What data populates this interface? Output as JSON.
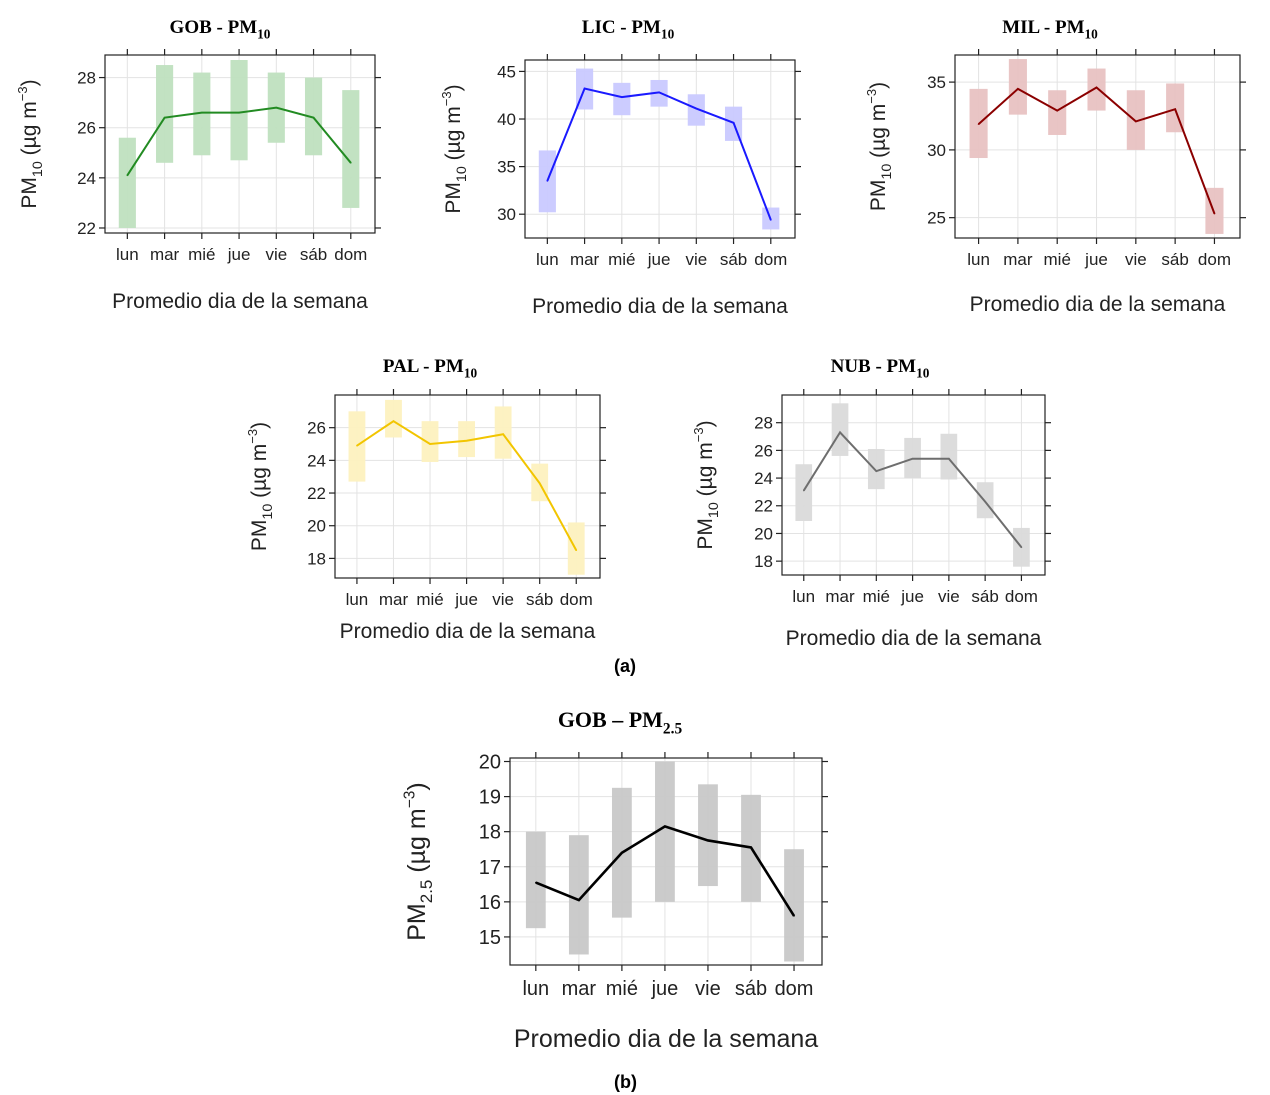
{
  "captions": {
    "a": "(a)",
    "b": "(b)"
  },
  "chart_data": [
    {
      "id": "gob-pm10",
      "type": "line",
      "title": "GOB - PM",
      "title_sub": "10",
      "ylabel": "PM",
      "ylabel_sub": "10",
      "ylabel_unit": "(µg m",
      "ylabel_sup": "−3",
      "xlabel": "Promedio dia de la semana",
      "categories": [
        "lun",
        "mar",
        "mié",
        "jue",
        "vie",
        "sáb",
        "dom"
      ],
      "values": [
        24.1,
        26.4,
        26.6,
        26.6,
        26.8,
        26.4,
        24.6
      ],
      "ci_low": [
        22.0,
        24.6,
        24.9,
        24.7,
        25.4,
        24.9,
        22.8
      ],
      "ci_high": [
        25.6,
        28.5,
        28.2,
        28.7,
        28.2,
        28.0,
        27.5
      ],
      "color": "#228b22",
      "band_color": "#bfe0bf",
      "yticks": [
        22,
        24,
        26,
        28
      ],
      "ylim": [
        21.8,
        28.9
      ],
      "grid": true
    },
    {
      "id": "lic-pm10",
      "type": "line",
      "title": "LIC - PM",
      "title_sub": "10",
      "ylabel": "PM",
      "ylabel_sub": "10",
      "ylabel_unit": "(µg m",
      "ylabel_sup": "−3",
      "xlabel": "Promedio dia de la semana",
      "categories": [
        "lun",
        "mar",
        "mié",
        "jue",
        "vie",
        "sáb",
        "dom"
      ],
      "values": [
        33.5,
        43.2,
        42.3,
        42.8,
        41.1,
        39.6,
        29.4
      ],
      "ci_low": [
        30.2,
        41.0,
        40.4,
        41.3,
        39.3,
        37.7,
        28.4
      ],
      "ci_high": [
        36.7,
        45.3,
        43.8,
        44.1,
        42.6,
        41.3,
        30.7
      ],
      "color": "#1a1aff",
      "band_color": "#c9c9ff",
      "yticks": [
        30,
        35,
        40,
        45
      ],
      "ylim": [
        27.5,
        46.2
      ],
      "grid": true
    },
    {
      "id": "mil-pm10",
      "type": "line",
      "title": "MIL - PM",
      "title_sub": "10",
      "ylabel": "PM",
      "ylabel_sub": "10",
      "ylabel_unit": "(µg m",
      "ylabel_sup": "−3",
      "xlabel": "Promedio dia de la semana",
      "categories": [
        "lun",
        "mar",
        "mié",
        "jue",
        "vie",
        "sáb",
        "dom"
      ],
      "values": [
        31.9,
        34.5,
        32.9,
        34.6,
        32.1,
        33.0,
        25.3
      ],
      "ci_low": [
        29.4,
        32.6,
        31.1,
        32.9,
        30.0,
        31.3,
        23.8
      ],
      "ci_high": [
        34.5,
        36.7,
        34.4,
        36.0,
        34.4,
        34.9,
        27.2
      ],
      "color": "#8b0000",
      "band_color": "#e8c2c2",
      "yticks": [
        25,
        30,
        35
      ],
      "ylim": [
        23.5,
        37.0
      ],
      "grid": true
    },
    {
      "id": "pal-pm10",
      "type": "line",
      "title": "PAL - PM",
      "title_sub": "10",
      "ylabel": "PM",
      "ylabel_sub": "10",
      "ylabel_unit": "(µg m",
      "ylabel_sup": "−3",
      "xlabel": "Promedio dia de la semana",
      "categories": [
        "lun",
        "mar",
        "mié",
        "jue",
        "vie",
        "sáb",
        "dom"
      ],
      "values": [
        24.9,
        26.4,
        25.0,
        25.2,
        25.6,
        22.6,
        18.5
      ],
      "ci_low": [
        22.7,
        25.4,
        23.9,
        24.2,
        24.1,
        21.5,
        17.0
      ],
      "ci_high": [
        27.0,
        27.7,
        26.4,
        26.4,
        27.3,
        23.8,
        20.2
      ],
      "color": "#f2c500",
      "band_color": "#fdf1bf",
      "yticks": [
        18,
        20,
        22,
        24,
        26
      ],
      "ylim": [
        16.8,
        28.0
      ],
      "grid": true
    },
    {
      "id": "nub-pm10",
      "type": "line",
      "title": "NUB - PM",
      "title_sub": "10",
      "ylabel": "PM",
      "ylabel_sub": "10",
      "ylabel_unit": "(µg m",
      "ylabel_sup": "−3",
      "xlabel": "Promedio dia de la semana",
      "categories": [
        "lun",
        "mar",
        "mié",
        "jue",
        "vie",
        "sáb",
        "dom"
      ],
      "values": [
        23.1,
        27.3,
        24.5,
        25.4,
        25.4,
        22.3,
        19.0
      ],
      "ci_low": [
        20.9,
        25.6,
        23.2,
        24.0,
        23.9,
        21.1,
        17.6
      ],
      "ci_high": [
        25.0,
        29.4,
        26.1,
        26.9,
        27.2,
        23.7,
        20.4
      ],
      "color": "#6e6e6e",
      "band_color": "#dadada",
      "yticks": [
        18,
        20,
        22,
        24,
        26,
        28
      ],
      "ylim": [
        17.0,
        30.0
      ],
      "grid": true
    },
    {
      "id": "gob-pm25",
      "type": "line",
      "title": "GOB – PM",
      "title_sub": "2.5",
      "ylabel": "PM",
      "ylabel_sub": "2.5",
      "ylabel_unit": "(µg m",
      "ylabel_sup": "−3",
      "xlabel": "Promedio dia de la semana",
      "categories": [
        "lun",
        "mar",
        "mié",
        "jue",
        "vie",
        "sáb",
        "dom"
      ],
      "values": [
        16.55,
        16.05,
        17.4,
        18.15,
        17.75,
        17.55,
        15.6
      ],
      "ci_low": [
        15.25,
        14.5,
        15.55,
        16.0,
        16.45,
        16.0,
        14.3
      ],
      "ci_high": [
        18.0,
        17.9,
        19.25,
        20.0,
        19.35,
        19.05,
        17.5
      ],
      "color": "#000000",
      "band_color": "#c8c8c8",
      "yticks": [
        15,
        16,
        17,
        18,
        19,
        20
      ],
      "ylim": [
        14.2,
        20.1
      ],
      "grid": true
    }
  ]
}
